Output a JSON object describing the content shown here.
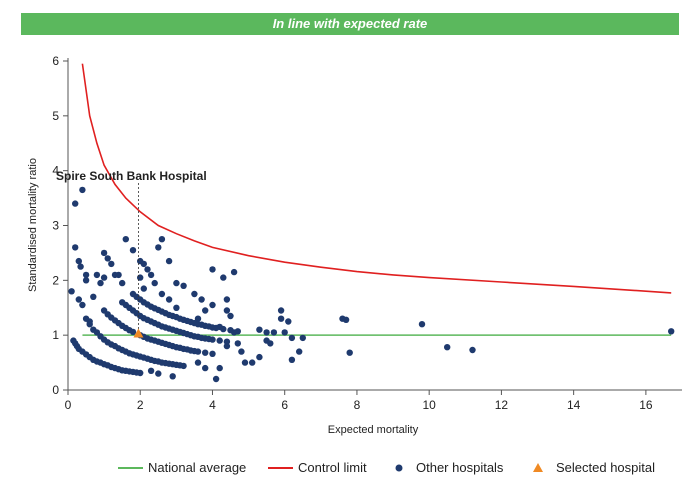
{
  "banner": {
    "text": "In line with expected rate",
    "color": "#5bb85d"
  },
  "chart_data": {
    "type": "scatter",
    "xlabel": "Expected mortality",
    "ylabel": "Standardised mortality ratio",
    "xlim": [
      0,
      17
    ],
    "ylim": [
      0,
      6
    ],
    "xticks": [
      0,
      2,
      4,
      6,
      8,
      10,
      12,
      14,
      16
    ],
    "yticks": [
      0,
      1,
      2,
      3,
      4,
      5,
      6
    ],
    "grid": false,
    "legend_position": "bottom",
    "national_average": {
      "name": "National average",
      "value": 1,
      "color": "#5cb85c"
    },
    "control_limit": {
      "name": "Control limit",
      "color": "#e02020",
      "points": [
        [
          0.4,
          5.95
        ],
        [
          0.6,
          5.0
        ],
        [
          0.8,
          4.5
        ],
        [
          1.0,
          4.1
        ],
        [
          1.3,
          3.75
        ],
        [
          1.6,
          3.5
        ],
        [
          2.0,
          3.25
        ],
        [
          2.5,
          3.0
        ],
        [
          3.0,
          2.85
        ],
        [
          3.5,
          2.72
        ],
        [
          4.0,
          2.6
        ],
        [
          5.0,
          2.45
        ],
        [
          6.0,
          2.33
        ],
        [
          7.0,
          2.24
        ],
        [
          8.0,
          2.16
        ],
        [
          9.0,
          2.1
        ],
        [
          10.0,
          2.05
        ],
        [
          12.0,
          1.97
        ],
        [
          14.0,
          1.89
        ],
        [
          16.7,
          1.77
        ]
      ]
    },
    "selected": {
      "name": "Selected hospital",
      "label": "Spire South Bank Hospital",
      "x": 1.95,
      "y": 1.03,
      "color": "#f08a24"
    },
    "other_hospitals": {
      "name": "Other hospitals",
      "color": "#1f3a6e",
      "points": [
        [
          0.1,
          1.8
        ],
        [
          0.2,
          2.6
        ],
        [
          0.3,
          1.65
        ],
        [
          0.2,
          3.4
        ],
        [
          0.4,
          3.65
        ],
        [
          0.3,
          2.35
        ],
        [
          0.35,
          2.25
        ],
        [
          0.4,
          1.55
        ],
        [
          0.5,
          2.0
        ],
        [
          0.5,
          2.1
        ],
        [
          0.6,
          1.25
        ],
        [
          0.7,
          1.7
        ],
        [
          0.8,
          2.1
        ],
        [
          0.9,
          1.95
        ],
        [
          1.0,
          2.5
        ],
        [
          1.0,
          2.05
        ],
        [
          1.1,
          2.4
        ],
        [
          1.2,
          2.3
        ],
        [
          1.3,
          2.1
        ],
        [
          1.4,
          2.1
        ],
        [
          1.5,
          1.95
        ],
        [
          1.6,
          2.75
        ],
        [
          1.8,
          2.55
        ],
        [
          2.0,
          2.05
        ],
        [
          2.0,
          2.35
        ],
        [
          2.1,
          2.3
        ],
        [
          2.1,
          1.85
        ],
        [
          2.2,
          2.2
        ],
        [
          2.3,
          2.1
        ],
        [
          2.5,
          2.6
        ],
        [
          2.6,
          2.75
        ],
        [
          2.8,
          2.35
        ],
        [
          2.4,
          1.95
        ],
        [
          2.6,
          1.75
        ],
        [
          2.8,
          1.65
        ],
        [
          3.0,
          1.95
        ],
        [
          3.0,
          1.5
        ],
        [
          3.2,
          1.9
        ],
        [
          3.5,
          1.75
        ],
        [
          3.7,
          1.65
        ],
        [
          3.6,
          1.3
        ],
        [
          3.8,
          1.45
        ],
        [
          4.0,
          1.55
        ],
        [
          4.0,
          2.2
        ],
        [
          4.3,
          2.05
        ],
        [
          4.6,
          2.15
        ],
        [
          4.4,
          1.65
        ],
        [
          4.4,
          1.45
        ],
        [
          4.5,
          1.35
        ],
        [
          4.2,
          1.15
        ],
        [
          4.6,
          1.05
        ],
        [
          5.3,
          1.1
        ],
        [
          5.5,
          1.05
        ],
        [
          5.7,
          1.05
        ],
        [
          5.9,
          1.45
        ],
        [
          5.9,
          1.3
        ],
        [
          6.1,
          1.25
        ],
        [
          6.0,
          1.05
        ],
        [
          6.2,
          0.95
        ],
        [
          6.5,
          0.95
        ],
        [
          6.4,
          0.7
        ],
        [
          6.2,
          0.55
        ],
        [
          5.5,
          0.9
        ],
        [
          5.6,
          0.85
        ],
        [
          5.3,
          0.6
        ],
        [
          5.1,
          0.5
        ],
        [
          4.9,
          0.5
        ],
        [
          4.8,
          0.7
        ],
        [
          4.7,
          0.85
        ],
        [
          4.4,
          0.8
        ],
        [
          4.2,
          0.4
        ],
        [
          4.1,
          0.2
        ],
        [
          3.8,
          0.4
        ],
        [
          3.6,
          0.5
        ],
        [
          2.9,
          0.25
        ],
        [
          2.5,
          0.3
        ],
        [
          2.3,
          0.35
        ],
        [
          7.6,
          1.3
        ],
        [
          7.7,
          1.28
        ],
        [
          7.8,
          0.68
        ],
        [
          9.8,
          1.2
        ],
        [
          10.5,
          0.78
        ],
        [
          11.2,
          0.73
        ],
        [
          16.7,
          1.07
        ],
        [
          0.15,
          0.9
        ],
        [
          0.2,
          0.85
        ],
        [
          0.25,
          0.8
        ],
        [
          0.3,
          0.75
        ],
        [
          0.4,
          0.7
        ],
        [
          0.5,
          0.65
        ],
        [
          0.6,
          0.6
        ],
        [
          0.7,
          0.55
        ],
        [
          0.8,
          0.52
        ],
        [
          0.9,
          0.5
        ],
        [
          1.0,
          0.47
        ],
        [
          1.1,
          0.45
        ],
        [
          1.2,
          0.42
        ],
        [
          1.3,
          0.4
        ],
        [
          1.4,
          0.38
        ],
        [
          1.5,
          0.36
        ],
        [
          1.6,
          0.35
        ],
        [
          1.7,
          0.34
        ],
        [
          1.8,
          0.33
        ],
        [
          1.9,
          0.32
        ],
        [
          2.0,
          0.31
        ],
        [
          0.5,
          1.3
        ],
        [
          0.6,
          1.2
        ],
        [
          0.7,
          1.1
        ],
        [
          0.8,
          1.05
        ],
        [
          0.9,
          0.98
        ],
        [
          1.0,
          0.92
        ],
        [
          1.1,
          0.87
        ],
        [
          1.2,
          0.83
        ],
        [
          1.3,
          0.8
        ],
        [
          1.4,
          0.76
        ],
        [
          1.5,
          0.73
        ],
        [
          1.6,
          0.7
        ],
        [
          1.7,
          0.67
        ],
        [
          1.8,
          0.65
        ],
        [
          1.9,
          0.63
        ],
        [
          2.0,
          0.61
        ],
        [
          2.1,
          0.59
        ],
        [
          2.2,
          0.57
        ],
        [
          2.3,
          0.55
        ],
        [
          2.4,
          0.53
        ],
        [
          2.5,
          0.52
        ],
        [
          2.6,
          0.5
        ],
        [
          2.7,
          0.49
        ],
        [
          2.8,
          0.48
        ],
        [
          2.9,
          0.47
        ],
        [
          3.0,
          0.46
        ],
        [
          3.1,
          0.45
        ],
        [
          3.2,
          0.44
        ],
        [
          1.0,
          1.45
        ],
        [
          1.1,
          1.38
        ],
        [
          1.2,
          1.32
        ],
        [
          1.3,
          1.27
        ],
        [
          1.4,
          1.22
        ],
        [
          1.5,
          1.17
        ],
        [
          1.6,
          1.13
        ],
        [
          1.7,
          1.09
        ],
        [
          1.8,
          1.06
        ],
        [
          2.0,
          1.0
        ],
        [
          2.1,
          0.97
        ],
        [
          2.2,
          0.94
        ],
        [
          2.3,
          0.92
        ],
        [
          2.4,
          0.9
        ],
        [
          2.5,
          0.88
        ],
        [
          2.6,
          0.86
        ],
        [
          2.7,
          0.84
        ],
        [
          2.8,
          0.82
        ],
        [
          2.9,
          0.8
        ],
        [
          3.0,
          0.78
        ],
        [
          3.1,
          0.77
        ],
        [
          3.2,
          0.75
        ],
        [
          3.3,
          0.74
        ],
        [
          3.4,
          0.72
        ],
        [
          3.5,
          0.71
        ],
        [
          3.6,
          0.7
        ],
        [
          3.8,
          0.68
        ],
        [
          4.0,
          0.66
        ],
        [
          1.5,
          1.6
        ],
        [
          1.6,
          1.55
        ],
        [
          1.7,
          1.5
        ],
        [
          1.8,
          1.45
        ],
        [
          1.9,
          1.4
        ],
        [
          2.0,
          1.35
        ],
        [
          2.1,
          1.31
        ],
        [
          2.2,
          1.28
        ],
        [
          2.3,
          1.25
        ],
        [
          2.4,
          1.22
        ],
        [
          2.5,
          1.19
        ],
        [
          2.6,
          1.16
        ],
        [
          2.7,
          1.14
        ],
        [
          2.8,
          1.12
        ],
        [
          2.9,
          1.1
        ],
        [
          3.0,
          1.08
        ],
        [
          3.1,
          1.06
        ],
        [
          3.2,
          1.04
        ],
        [
          3.3,
          1.02
        ],
        [
          3.4,
          1.0
        ],
        [
          3.5,
          0.98
        ],
        [
          3.6,
          0.97
        ],
        [
          3.7,
          0.95
        ],
        [
          3.8,
          0.94
        ],
        [
          3.9,
          0.93
        ],
        [
          4.0,
          0.92
        ],
        [
          4.2,
          0.9
        ],
        [
          4.4,
          0.88
        ],
        [
          1.8,
          1.75
        ],
        [
          1.9,
          1.7
        ],
        [
          2.0,
          1.65
        ],
        [
          2.1,
          1.6
        ],
        [
          2.2,
          1.56
        ],
        [
          2.3,
          1.52
        ],
        [
          2.4,
          1.49
        ],
        [
          2.5,
          1.46
        ],
        [
          2.6,
          1.43
        ],
        [
          2.7,
          1.4
        ],
        [
          2.8,
          1.37
        ],
        [
          2.9,
          1.35
        ],
        [
          3.0,
          1.33
        ],
        [
          3.1,
          1.3
        ],
        [
          3.2,
          1.28
        ],
        [
          3.3,
          1.26
        ],
        [
          3.4,
          1.24
        ],
        [
          3.5,
          1.22
        ],
        [
          3.6,
          1.2
        ],
        [
          3.7,
          1.19
        ],
        [
          3.8,
          1.17
        ],
        [
          3.9,
          1.16
        ],
        [
          4.0,
          1.14
        ],
        [
          4.1,
          1.13
        ],
        [
          4.3,
          1.11
        ],
        [
          4.5,
          1.09
        ],
        [
          4.7,
          1.07
        ]
      ]
    }
  }
}
